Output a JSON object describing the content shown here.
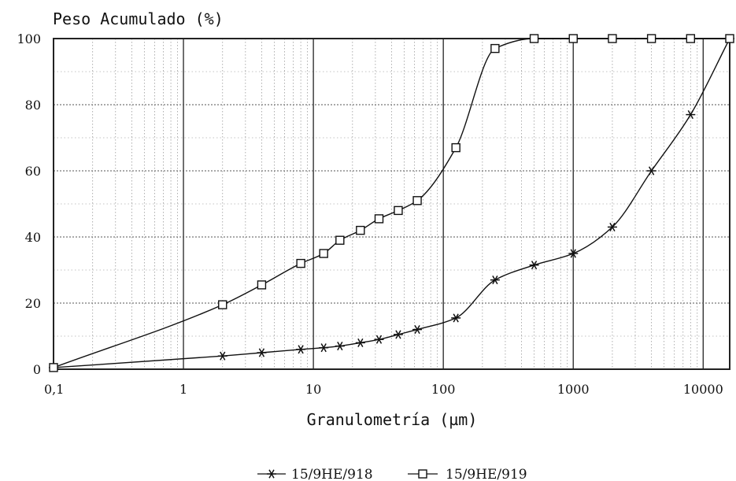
{
  "chart_data": {
    "type": "line",
    "title": "Peso Acumulado (%)",
    "xlabel": "Granulometría (µm)",
    "ylabel": "",
    "xscale": "log",
    "xlim": [
      0.1,
      16000
    ],
    "ylim": [
      0,
      100
    ],
    "grid": true,
    "legend_position": "bottom-center",
    "x_ticks": [
      {
        "value": 0.1,
        "label": "0,1"
      },
      {
        "value": 1,
        "label": "1"
      },
      {
        "value": 10,
        "label": "10"
      },
      {
        "value": 100,
        "label": "100"
      },
      {
        "value": 1000,
        "label": "1000"
      },
      {
        "value": 10000,
        "label": "10000"
      }
    ],
    "y_ticks": [
      {
        "value": 0,
        "label": "0"
      },
      {
        "value": 20,
        "label": "20"
      },
      {
        "value": 40,
        "label": "40"
      },
      {
        "value": 60,
        "label": "60"
      },
      {
        "value": 80,
        "label": "80"
      },
      {
        "value": 100,
        "label": "100"
      }
    ],
    "series": [
      {
        "name": "15/9HE/918",
        "marker": "asterisk",
        "color": "#111111",
        "points": [
          {
            "x": 0.1,
            "y": 0.5
          },
          {
            "x": 2,
            "y": 4
          },
          {
            "x": 4,
            "y": 5
          },
          {
            "x": 8,
            "y": 6
          },
          {
            "x": 12,
            "y": 6.5
          },
          {
            "x": 16,
            "y": 7
          },
          {
            "x": 23,
            "y": 8
          },
          {
            "x": 32,
            "y": 9
          },
          {
            "x": 45,
            "y": 10.5
          },
          {
            "x": 63,
            "y": 12
          },
          {
            "x": 125,
            "y": 15.5
          },
          {
            "x": 250,
            "y": 27
          },
          {
            "x": 500,
            "y": 31.5
          },
          {
            "x": 1000,
            "y": 35
          },
          {
            "x": 2000,
            "y": 43
          },
          {
            "x": 4000,
            "y": 60
          },
          {
            "x": 8000,
            "y": 77
          },
          {
            "x": 16000,
            "y": 100
          }
        ]
      },
      {
        "name": "15/9HE/919",
        "marker": "square",
        "color": "#111111",
        "points": [
          {
            "x": 0.1,
            "y": 0.5
          },
          {
            "x": 2,
            "y": 19.5
          },
          {
            "x": 4,
            "y": 25.5
          },
          {
            "x": 8,
            "y": 32
          },
          {
            "x": 12,
            "y": 35
          },
          {
            "x": 16,
            "y": 39
          },
          {
            "x": 23,
            "y": 42
          },
          {
            "x": 32,
            "y": 45.5
          },
          {
            "x": 45,
            "y": 48
          },
          {
            "x": 63,
            "y": 51
          },
          {
            "x": 125,
            "y": 67
          },
          {
            "x": 250,
            "y": 97
          },
          {
            "x": 500,
            "y": 100
          },
          {
            "x": 1000,
            "y": 100
          },
          {
            "x": 2000,
            "y": 100
          },
          {
            "x": 4000,
            "y": 100
          },
          {
            "x": 8000,
            "y": 100
          },
          {
            "x": 16000,
            "y": 100
          }
        ]
      }
    ]
  }
}
